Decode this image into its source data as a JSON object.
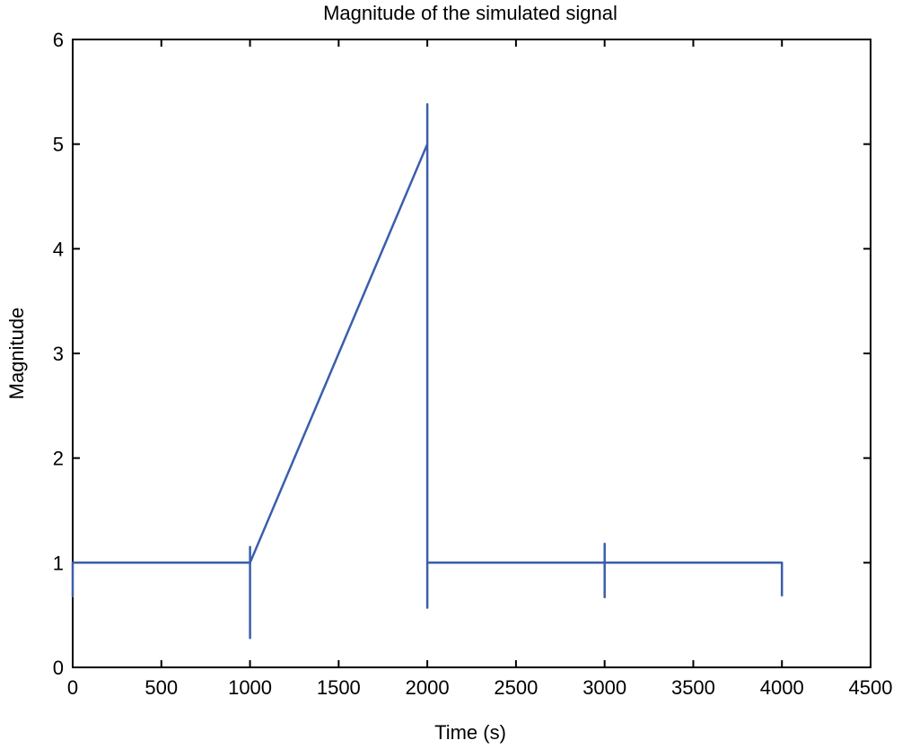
{
  "chart_data": {
    "type": "line",
    "title": "Magnitude of the simulated signal",
    "xlabel": "Time (s)",
    "ylabel": "Magnitude",
    "xlim": [
      0,
      4500
    ],
    "ylim": [
      0,
      6
    ],
    "xticks": [
      0,
      500,
      1000,
      1500,
      2000,
      2500,
      3000,
      3500,
      4000,
      4500
    ],
    "yticks": [
      0,
      1,
      2,
      3,
      4,
      5,
      6
    ],
    "xtick_labels": [
      "0",
      "500",
      "1000",
      "1500",
      "2000",
      "2500",
      "3000",
      "3500",
      "4000",
      "4500"
    ],
    "ytick_labels": [
      "0",
      "1",
      "2",
      "3",
      "4",
      "5",
      "6"
    ],
    "grid": false,
    "line_color": "#3a5eab",
    "series": [
      {
        "x": [
          0,
          0,
          0,
          1000,
          1000,
          1000,
          1000,
          2000,
          2000,
          2000,
          2000,
          3000,
          3000,
          3000,
          3000,
          4000,
          4000
        ],
        "y": [
          1.0,
          0.68,
          1.0,
          1.0,
          0.28,
          1.15,
          1.0,
          5.0,
          5.38,
          0.57,
          1.0,
          1.0,
          0.67,
          1.18,
          1.0,
          1.0,
          0.68
        ]
      }
    ]
  }
}
